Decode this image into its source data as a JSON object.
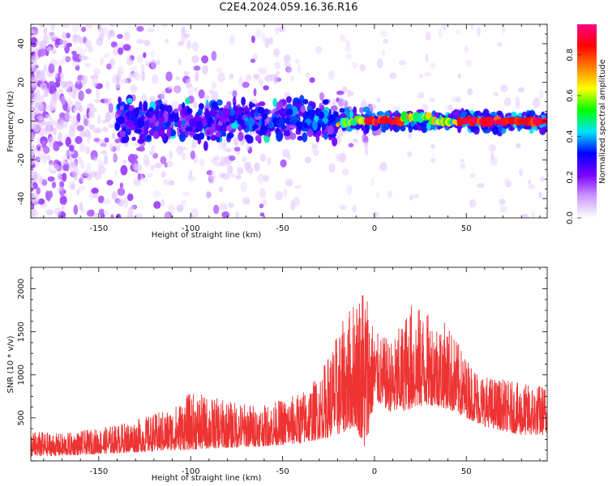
{
  "title": "C2E4.2024.059.16.36.R16",
  "chart_data": [
    {
      "type": "heatmap",
      "xlabel": "Height of straight line (km)",
      "ylabel": "Frequency (Hz)",
      "xlim": [
        -187,
        94
      ],
      "ylim": [
        -50,
        50
      ],
      "xticks": [
        -150,
        -100,
        -50,
        0,
        50
      ],
      "yticks": [
        -40,
        -20,
        0,
        20,
        40
      ],
      "colorbar": {
        "label": "Normalized spectral amplitude",
        "range": [
          0.0,
          0.95
        ],
        "ticks": [
          0.0,
          0.2,
          0.4,
          0.6,
          0.8
        ],
        "colors": [
          "#ffffff",
          "#cc99ff",
          "#7a00ff",
          "#0000ff",
          "#00e5ff",
          "#00ff00",
          "#ffff00",
          "#ff8000",
          "#ff0000",
          "#ff0088"
        ]
      },
      "main_ridge": {
        "description_free": "",
        "frequency_hz": 0,
        "strong_from_km": -20,
        "strong_to_km": 94
      }
    },
    {
      "type": "line",
      "xlabel": "Height of straight line (km)",
      "ylabel": "SNR (10 * v/v)",
      "xlim": [
        -187,
        94
      ],
      "ylim": [
        0,
        2250
      ],
      "xticks": [
        -150,
        -100,
        -50,
        0,
        50
      ],
      "yticks": [
        500,
        1000,
        1500,
        2000
      ],
      "color": "#ee3333",
      "envelope": {
        "x": [
          -187,
          -170,
          -150,
          -130,
          -110,
          -100,
          -80,
          -60,
          -40,
          -30,
          -20,
          -10,
          -5,
          0,
          10,
          20,
          30,
          40,
          50,
          60,
          70,
          80,
          94
        ],
        "upper": [
          350,
          320,
          380,
          480,
          620,
          800,
          700,
          650,
          800,
          1000,
          1500,
          1950,
          2200,
          1500,
          1400,
          1850,
          1700,
          1600,
          1200,
          1000,
          950,
          900,
          900
        ],
        "lower": [
          50,
          60,
          80,
          100,
          120,
          130,
          150,
          170,
          200,
          250,
          300,
          400,
          100,
          700,
          550,
          600,
          650,
          600,
          500,
          400,
          350,
          300,
          300
        ]
      }
    }
  ]
}
